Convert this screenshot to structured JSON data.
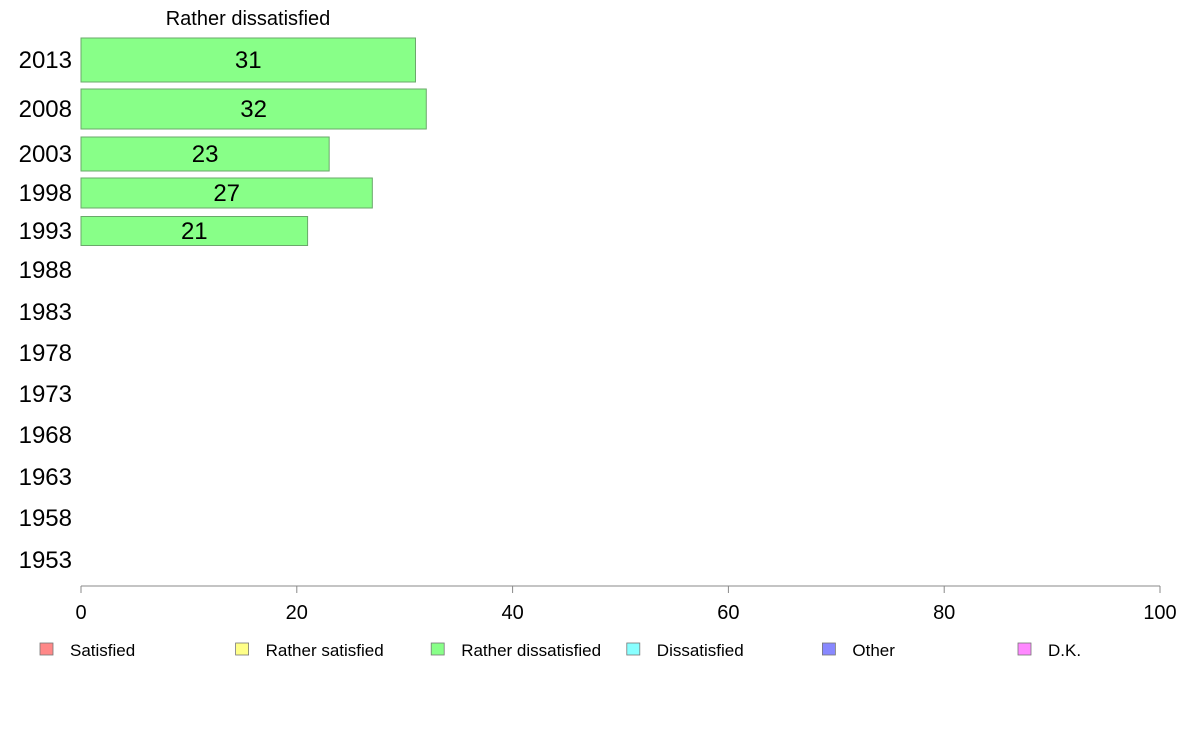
{
  "chart_data": {
    "type": "bar",
    "orientation": "horizontal",
    "title": "Rather dissatisfied",
    "categories": [
      "2013",
      "2008",
      "2003",
      "1998",
      "1993",
      "1988",
      "1983",
      "1978",
      "1973",
      "1968",
      "1963",
      "1958",
      "1953"
    ],
    "series": [
      {
        "name": "Rather dissatisfied",
        "color": "#88ff88",
        "values": [
          31,
          32,
          23,
          27,
          21,
          null,
          null,
          null,
          null,
          null,
          null,
          null,
          null
        ]
      }
    ],
    "xlim": [
      0,
      100
    ],
    "xticks": [
      0,
      20,
      40,
      60,
      80,
      100
    ],
    "grid": false,
    "legend": {
      "placement": "bottom",
      "entries": [
        {
          "label": "Satisfied",
          "color": "#ff8888"
        },
        {
          "label": "Rather satisfied",
          "color": "#ffff88"
        },
        {
          "label": "Rather dissatisfied",
          "color": "#88ff88"
        },
        {
          "label": "Dissatisfied",
          "color": "#88ffff"
        },
        {
          "label": "Other",
          "color": "#8888ff"
        },
        {
          "label": "D.K.",
          "color": "#ff88ff"
        }
      ]
    }
  }
}
